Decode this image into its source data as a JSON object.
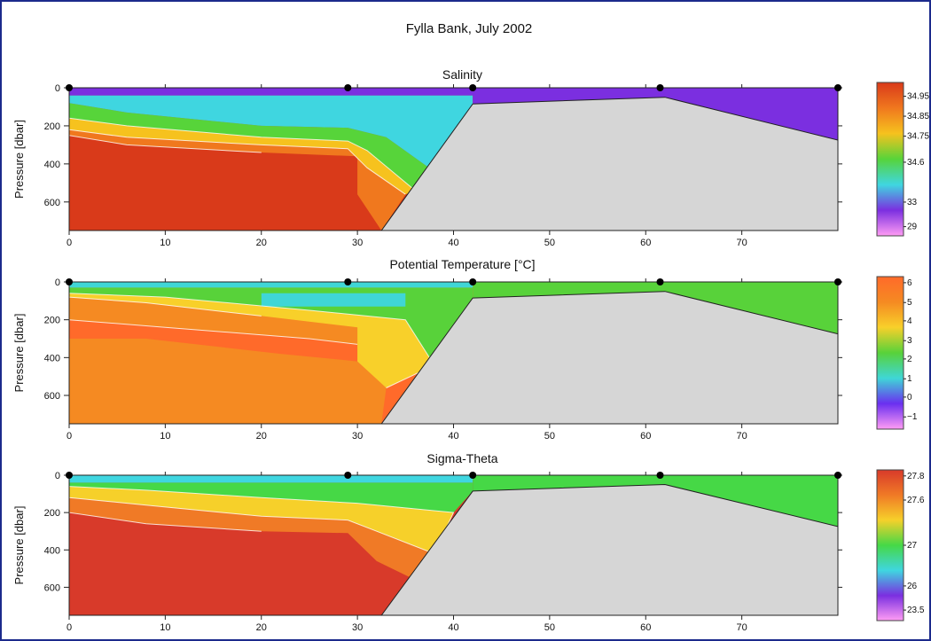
{
  "title": "Fylla Bank, July 2002",
  "chart_data": [
    {
      "type": "heatmap",
      "title": "Salinity",
      "ylabel": "Pressure [dbar]",
      "xlim": [
        0,
        80
      ],
      "ylim": [
        0,
        750
      ],
      "x_ticks": [
        0,
        10,
        20,
        30,
        40,
        50,
        60,
        70
      ],
      "y_ticks": [
        0,
        200,
        400,
        600
      ],
      "stations_x": [
        0,
        29,
        42,
        61.5,
        80
      ],
      "bottom_profile": [
        [
          32.5,
          750
        ],
        [
          42,
          85
        ],
        [
          62,
          50
        ],
        [
          80,
          275
        ]
      ],
      "colorbar_labels": [
        "34.95",
        "34.85",
        "34.75",
        "34.6",
        "33",
        "29"
      ],
      "colorbar_label_positions": [
        0.09,
        0.22,
        0.35,
        0.52,
        0.78,
        0.94
      ],
      "field": "salinity",
      "colors": [
        "#d93a1a",
        "#f0781e",
        "#f6c21e",
        "#57d43a",
        "#3fd6e0",
        "#7b2fe0",
        "#ff9cf4"
      ]
    },
    {
      "type": "heatmap",
      "title": "Potential Temperature [°C]",
      "ylabel": "Pressure [dbar]",
      "xlim": [
        0,
        80
      ],
      "ylim": [
        0,
        750
      ],
      "x_ticks": [
        0,
        10,
        20,
        30,
        40,
        50,
        60,
        70
      ],
      "y_ticks": [
        0,
        200,
        400,
        600
      ],
      "stations_x": [
        0,
        29,
        42,
        61.5,
        80
      ],
      "bottom_profile": [
        [
          32.5,
          750
        ],
        [
          42,
          85
        ],
        [
          62,
          50
        ],
        [
          80,
          275
        ]
      ],
      "colorbar_labels": [
        "6",
        "5",
        "4",
        "3",
        "2",
        "1",
        "0",
        "−1"
      ],
      "colorbar_label_positions": [
        0.04,
        0.17,
        0.29,
        0.42,
        0.54,
        0.67,
        0.79,
        0.92
      ],
      "field": "temperature",
      "colors": [
        "#ff6a2a",
        "#f58a22",
        "#f8d02a",
        "#58d23a",
        "#3fd6d6",
        "#6a2ff0",
        "#ff9cf4"
      ]
    },
    {
      "type": "heatmap",
      "title": "Sigma-Theta",
      "ylabel": "Pressure [dbar]",
      "xlim": [
        0,
        80
      ],
      "ylim": [
        0,
        750
      ],
      "x_ticks": [
        0,
        10,
        20,
        30,
        40,
        50,
        60,
        70
      ],
      "y_ticks": [
        0,
        200,
        400,
        600
      ],
      "stations_x": [
        0,
        29,
        42,
        61.5,
        80
      ],
      "bottom_profile": [
        [
          32.5,
          750
        ],
        [
          42,
          85
        ],
        [
          62,
          50
        ],
        [
          80,
          275
        ]
      ],
      "colorbar_labels": [
        "27.8",
        "27.6",
        "27",
        "26",
        "23.5"
      ],
      "colorbar_label_positions": [
        0.04,
        0.2,
        0.5,
        0.77,
        0.93
      ],
      "field": "density",
      "colors": [
        "#d83a2a",
        "#f07a26",
        "#f6d02a",
        "#46d846",
        "#3fd6e0",
        "#7a2fe0",
        "#ff9cf4"
      ]
    }
  ]
}
